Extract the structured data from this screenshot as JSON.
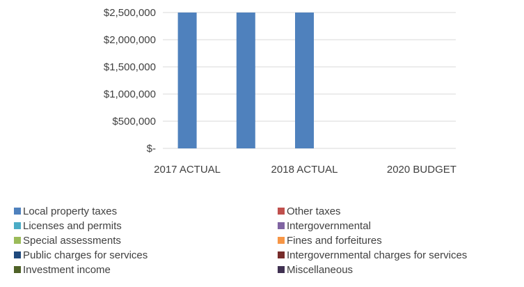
{
  "chart_data": {
    "type": "bar",
    "categories": [
      "2017   ACTUAL",
      "",
      "2018   ACTUAL",
      "",
      "2020   BUDGET"
    ],
    "ylim": [
      0,
      2500000
    ],
    "yticks": [
      0,
      500000,
      1000000,
      1500000,
      2000000,
      2500000
    ],
    "ytick_labels": [
      "$-",
      "$500,000",
      "$1,000,000",
      "$1,500,000",
      "$2,000,000",
      "$2,500,000"
    ],
    "grid": true,
    "legend_position": "bottom",
    "series": [
      {
        "name": "Local property taxes",
        "color": "#4f81bd",
        "values": [
          2500000,
          2500000,
          2500000,
          0,
          0
        ]
      },
      {
        "name": "Other taxes",
        "color": "#c0504d",
        "values": [
          0,
          0,
          0,
          0,
          0
        ]
      },
      {
        "name": "Licenses and permits",
        "color": "#4bacc6",
        "values": [
          0,
          0,
          0,
          0,
          0
        ]
      },
      {
        "name": "Intergovernmental",
        "color": "#8064a2",
        "values": [
          0,
          0,
          0,
          0,
          0
        ]
      },
      {
        "name": "Special assessments",
        "color": "#9bbb59",
        "values": [
          0,
          0,
          0,
          0,
          0
        ]
      },
      {
        "name": "Fines and forfeitures",
        "color": "#f79646",
        "values": [
          0,
          0,
          0,
          0,
          0
        ]
      },
      {
        "name": "Public charges for services",
        "color": "#1f497d",
        "values": [
          0,
          0,
          0,
          0,
          0
        ]
      },
      {
        "name": "Intergovernmental charges for services",
        "color": "#772c2a",
        "values": [
          0,
          0,
          0,
          0,
          0
        ]
      },
      {
        "name": "Investment income",
        "color": "#4f6228",
        "values": [
          0,
          0,
          0,
          0,
          0
        ]
      },
      {
        "name": "Miscellaneous",
        "color": "#403152",
        "values": [
          0,
          0,
          0,
          0,
          0
        ]
      }
    ]
  }
}
